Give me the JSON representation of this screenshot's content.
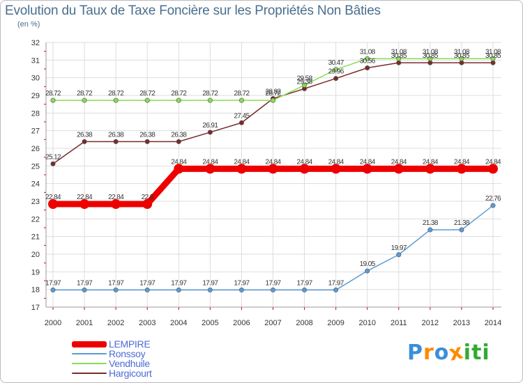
{
  "header": {
    "title": "Evolution du Taux de Taxe Foncière sur les Propriétés Non Bâties",
    "unit": "(en %)"
  },
  "logo": {
    "letters": [
      "P",
      "r",
      "o",
      "x",
      "i",
      "t",
      "i"
    ],
    "colors": [
      "#3a8fd8",
      "#ff8a00",
      "#3a8fd8",
      "#ff8a00",
      "#33aa33",
      "#33aa33",
      "#33aa33"
    ]
  },
  "chart_data": {
    "type": "line",
    "title": "Evolution du Taux de Taxe Foncière sur les Propriétés Non Bâties",
    "ylabel": "(en %)",
    "xlabel": "",
    "ylim": [
      17,
      32
    ],
    "grid": true,
    "legend_position": "bottom-left",
    "x": [
      "2000",
      "2001",
      "2002",
      "2003",
      "2004",
      "2005",
      "2006",
      "2007",
      "2008",
      "2009",
      "2010",
      "2011",
      "2012",
      "2013",
      "2014"
    ],
    "y_ticks": [
      "17",
      "18",
      "19",
      "20",
      "21",
      "22",
      "23",
      "24",
      "25",
      "26",
      "27",
      "28",
      "29",
      "30",
      "31",
      "32"
    ],
    "series": [
      {
        "name": "LEMPIRE",
        "color": "#ee0000",
        "values": [
          22.84,
          22.84,
          22.84,
          22.84,
          24.84,
          24.84,
          24.84,
          24.84,
          24.84,
          24.84,
          24.84,
          24.84,
          24.84,
          24.84,
          24.84
        ],
        "labels": [
          "22.84",
          "22.84",
          "22.84",
          "22.8",
          "24.84",
          "24.84",
          "24.84",
          "24.84",
          "24.84",
          "24.84",
          "24.84",
          "24.84",
          "24.84",
          "24.84",
          "24.84"
        ]
      },
      {
        "name": "Ronssoy",
        "color": "#5b9bd5",
        "values": [
          17.97,
          17.97,
          17.97,
          17.97,
          17.97,
          17.97,
          17.97,
          17.97,
          17.97,
          17.97,
          19.05,
          19.97,
          21.38,
          21.38,
          22.76
        ],
        "labels": [
          "17.97",
          "17.97",
          "17.97",
          "17.97",
          "17.97",
          "17.97",
          "17.97",
          "17.97",
          "17.97",
          "17.97",
          "19.05",
          "19.97",
          "21.38",
          "21.38",
          "22.76"
        ]
      },
      {
        "name": "Vendhuile",
        "color": "#88dd55",
        "values": [
          28.72,
          28.72,
          28.72,
          28.72,
          28.72,
          28.72,
          28.72,
          28.72,
          29.58,
          30.47,
          31.08,
          31.08,
          31.08,
          31.08,
          31.08
        ],
        "labels": [
          "28.72",
          "28.72",
          "28.72",
          "28.72",
          "28.72",
          "28.72",
          "28.72",
          "28.72",
          "29.58",
          "30.47",
          "31.08",
          "31.08",
          "31.08",
          "31.08",
          "31.08"
        ]
      },
      {
        "name": "Hargicourt",
        "color": "#7a2b2b",
        "values": [
          25.12,
          26.38,
          26.38,
          26.38,
          26.38,
          26.91,
          27.45,
          28.82,
          29.38,
          29.96,
          30.56,
          30.85,
          30.85,
          30.85,
          30.85
        ],
        "labels": [
          "25.12",
          "26.38",
          "26.38",
          "26.38",
          "26.38",
          "26.91",
          "27.45",
          "28.82",
          "29.38",
          "29.96",
          "30.56",
          "30.85",
          "30.85",
          "30.85",
          "30.85"
        ]
      }
    ]
  }
}
